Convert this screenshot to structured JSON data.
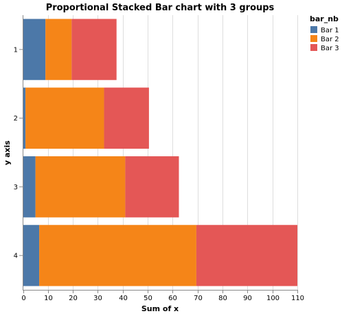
{
  "chart_data": {
    "type": "bar",
    "orientation": "horizontal",
    "stacked": true,
    "title": "Proportional Stacked Bar chart with 3 groups",
    "xlabel": "Sum of x",
    "ylabel": "y axis",
    "categories": [
      "1",
      "2",
      "3",
      "4"
    ],
    "xlim": [
      0,
      110
    ],
    "x_ticks": [
      0,
      10,
      20,
      30,
      40,
      50,
      60,
      70,
      80,
      90,
      100,
      110
    ],
    "grid": true,
    "legend": {
      "title": "bar_nb",
      "placement": "top-right"
    },
    "series": [
      {
        "name": "Bar 1",
        "color": "#4c78a8",
        "values": [
          9,
          1,
          5,
          6.5
        ]
      },
      {
        "name": "Bar 2",
        "color": "#f58518",
        "values": [
          10.5,
          31.5,
          36,
          63
        ]
      },
      {
        "name": "Bar 3",
        "color": "#e45756",
        "values": [
          18,
          18,
          21.5,
          40.5
        ]
      }
    ]
  }
}
